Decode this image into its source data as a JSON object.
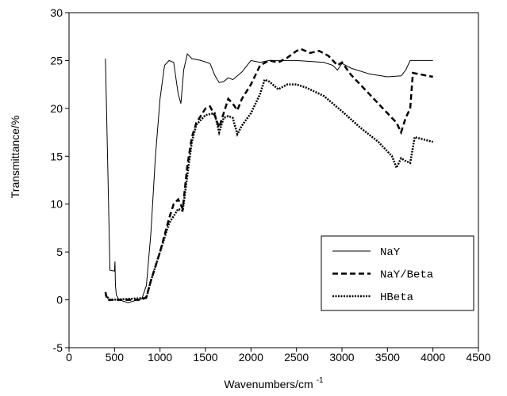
{
  "chart_data": {
    "type": "line",
    "xlabel": {
      "text": "Wavenumbers/cm",
      "superscript": "-1"
    },
    "ylabel": "Transmittance/%",
    "xlim": [
      0,
      4500
    ],
    "xticks": [
      0,
      500,
      1000,
      1500,
      2000,
      2500,
      3000,
      3500,
      4000,
      4500
    ],
    "ylim": [
      -5,
      30
    ],
    "yticks": [
      -5,
      0,
      5,
      10,
      15,
      20,
      25,
      30
    ],
    "legend": "lower right",
    "series": [
      {
        "name": "NaY",
        "color": "#000000",
        "dash": "solid",
        "width": 1,
        "x": [
          400,
          450,
          500,
          505,
          510,
          520,
          550,
          650,
          750,
          800,
          850,
          900,
          950,
          1000,
          1050,
          1100,
          1150,
          1200,
          1230,
          1260,
          1300,
          1350,
          1450,
          1550,
          1600,
          1650,
          1700,
          1750,
          1800,
          1900,
          2000,
          2100,
          2200,
          2500,
          2800,
          2900,
          2950,
          3000,
          3100,
          3300,
          3500,
          3650,
          3700,
          3750,
          4000
        ],
        "values": [
          25.2,
          3.1,
          3.0,
          4.0,
          1.5,
          0.5,
          0,
          -0.3,
          0,
          0.1,
          1.5,
          7,
          15,
          21,
          24.5,
          25,
          24.8,
          21.5,
          20.5,
          24,
          25.7,
          25.2,
          25,
          24.7,
          23.5,
          22.7,
          22.8,
          23.2,
          23.0,
          23.8,
          25,
          24.8,
          25,
          25,
          24.8,
          24.5,
          24.0,
          24.7,
          24.2,
          23.6,
          23.3,
          23.4,
          24,
          25,
          25
        ]
      },
      {
        "name": "NaY/Beta",
        "color": "#000000",
        "dash": "dashed",
        "width": 2.5,
        "x": [
          400,
          420,
          800,
          850,
          900,
          1000,
          1100,
          1150,
          1200,
          1250,
          1300,
          1350,
          1400,
          1500,
          1550,
          1600,
          1650,
          1700,
          1750,
          1800,
          1850,
          1900,
          2000,
          2100,
          2200,
          2300,
          2400,
          2500,
          2550,
          2650,
          2750,
          2850,
          2950,
          3000,
          3100,
          3300,
          3500,
          3600,
          3650,
          3700,
          3750,
          3780,
          4000
        ],
        "values": [
          0.8,
          0,
          0,
          0.3,
          2,
          5,
          8.5,
          10,
          10.5,
          9.5,
          14,
          17,
          18.5,
          20,
          20.2,
          19.3,
          18.0,
          19.5,
          21,
          20.5,
          19.8,
          21,
          22.5,
          24.5,
          25,
          24.8,
          25.3,
          26,
          26.2,
          25.8,
          26,
          25.5,
          24.5,
          24.8,
          23.5,
          21.5,
          19.5,
          18.5,
          17.5,
          19,
          20,
          23.7,
          23.3
        ]
      },
      {
        "name": "HBeta",
        "color": "#000000",
        "dash": "dotted",
        "width": 2.5,
        "x": [
          400,
          450,
          850,
          900,
          1000,
          1100,
          1200,
          1250,
          1300,
          1350,
          1400,
          1500,
          1600,
          1650,
          1700,
          1750,
          1800,
          1850,
          1900,
          2000,
          2100,
          2150,
          2200,
          2300,
          2400,
          2500,
          2600,
          2800,
          2900,
          3000,
          3200,
          3400,
          3550,
          3600,
          3650,
          3700,
          3750,
          3800,
          4000
        ],
        "values": [
          0.5,
          0,
          0.2,
          2,
          5,
          8,
          9.5,
          9.3,
          13,
          16.5,
          18.3,
          19.3,
          19.5,
          17.5,
          19,
          19.2,
          19,
          17.3,
          18.2,
          19.5,
          21.5,
          23,
          22.8,
          22,
          22.5,
          22.5,
          22.2,
          21.3,
          20.5,
          19.7,
          18,
          16.5,
          15,
          13.8,
          14.8,
          14.5,
          14.3,
          17,
          16.5
        ]
      }
    ]
  }
}
